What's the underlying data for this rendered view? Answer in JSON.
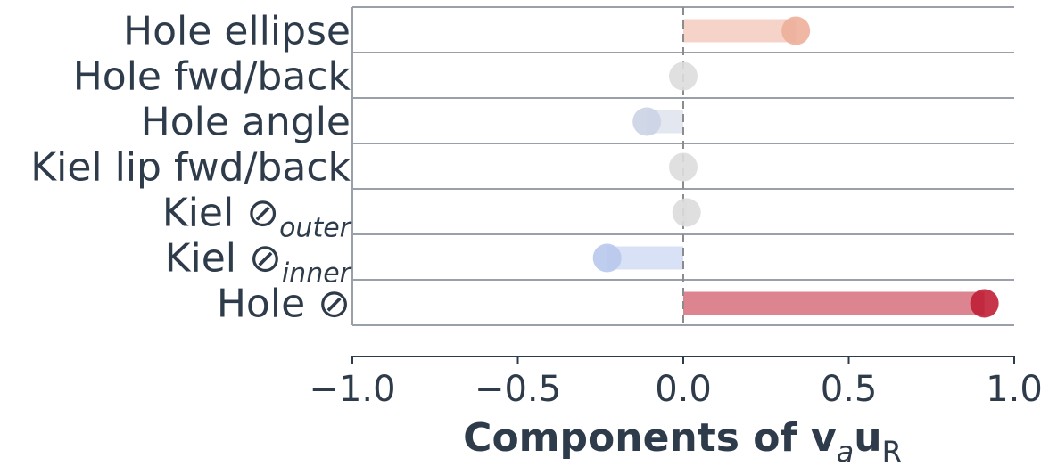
{
  "chart_data": {
    "type": "lollipop",
    "categories": [
      {
        "main": "Hole ellipse",
        "sub": ""
      },
      {
        "main": "Hole fwd/back",
        "sub": ""
      },
      {
        "main": "Hole angle",
        "sub": ""
      },
      {
        "main": "Kiel lip fwd/back",
        "sub": ""
      },
      {
        "main": "Kiel ⊘",
        "sub": "outer"
      },
      {
        "main": "Kiel ⊘",
        "sub": "inner"
      },
      {
        "main": "Hole ⊘",
        "sub": ""
      }
    ],
    "values": [
      0.34,
      0.0,
      -0.11,
      0.0,
      0.01,
      -0.23,
      0.91
    ],
    "xlim": [
      -1.0,
      1.0
    ],
    "xticks": [
      "−1.0",
      "−0.5",
      "0.0",
      "0.5",
      "1.0"
    ],
    "xtick_values": [
      -1.0,
      -0.5,
      0.0,
      0.5,
      1.0
    ],
    "xlabel": {
      "main": "Components of ",
      "v": "v",
      "a": "a",
      "u": "u",
      "R": "R"
    },
    "colormap": "coolwarm",
    "colors": {
      "text": "#2e3b4a",
      "grid": "#9aa0aa",
      "zero_line": "#8c8c8c"
    },
    "grid": true
  }
}
